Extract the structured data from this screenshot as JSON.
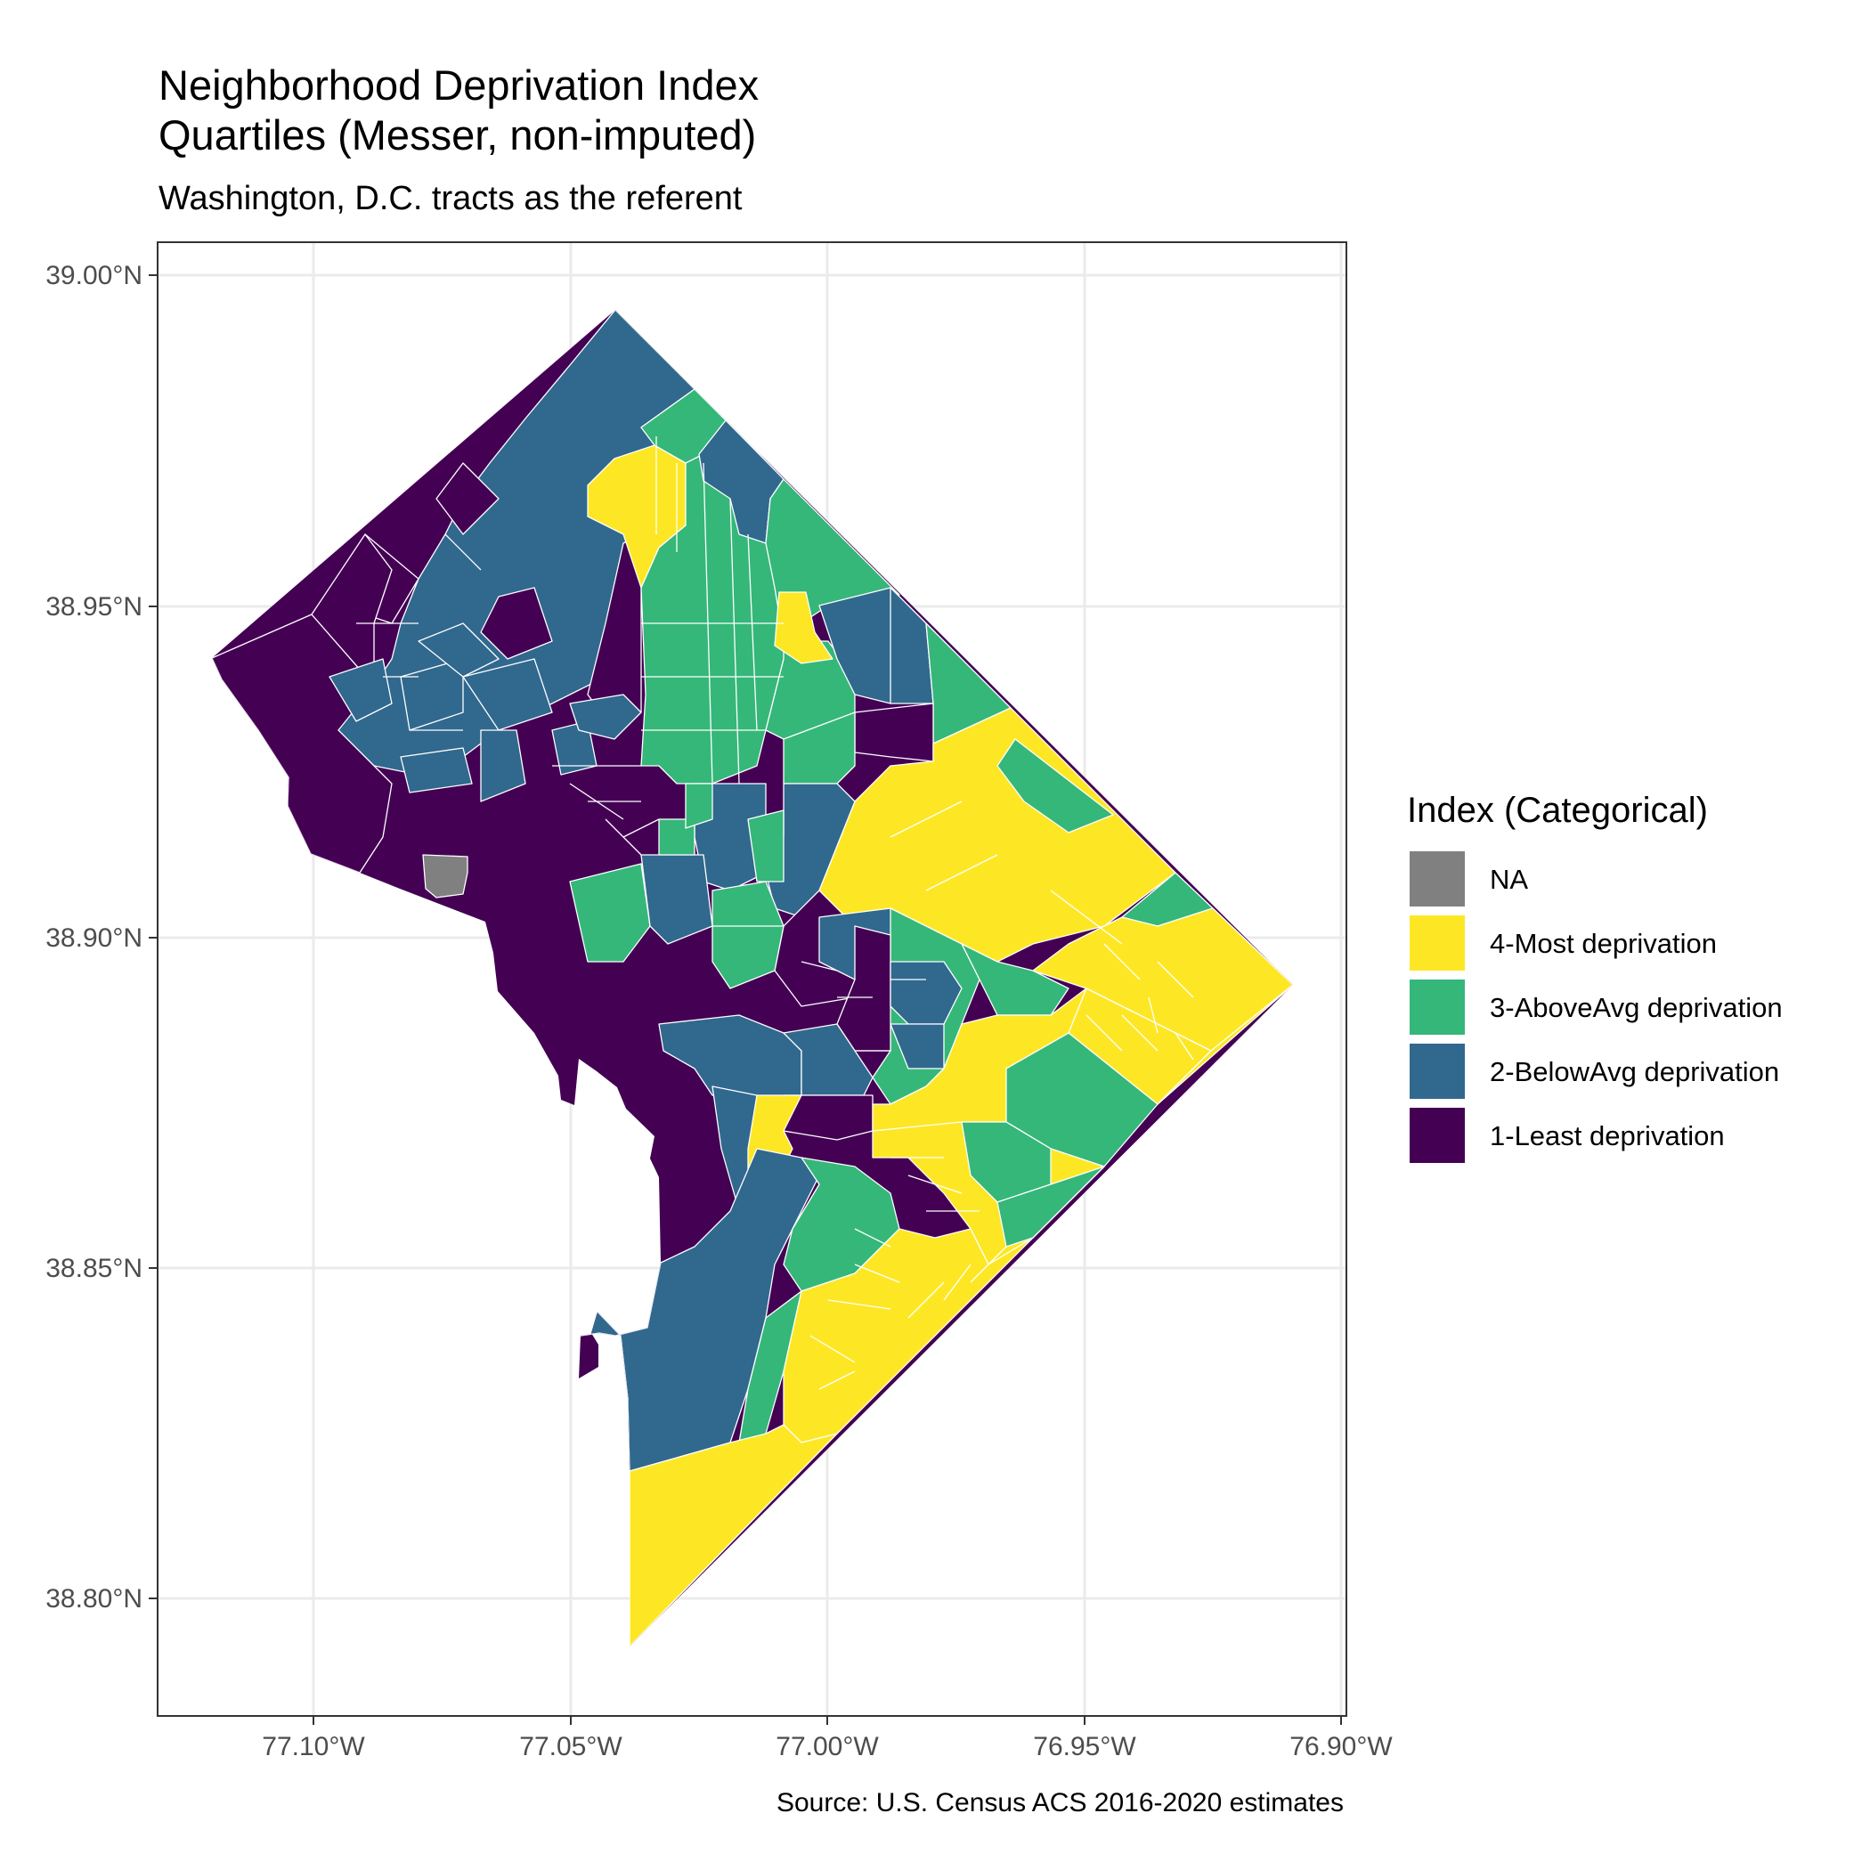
{
  "title_line1": "Neighborhood Deprivation Index",
  "title_line2": "Quartiles (Messer, non-imputed)",
  "subtitle": "Washington, D.C. tracts as the referent",
  "caption": "Source: U.S. Census ACS 2016-2020 estimates",
  "y_ticks": [
    {
      "value": 39.0,
      "label": "39.00°N"
    },
    {
      "value": 38.95,
      "label": "38.95°N"
    },
    {
      "value": 38.9,
      "label": "38.90°N"
    },
    {
      "value": 38.85,
      "label": "38.85°N"
    },
    {
      "value": 38.8,
      "label": "38.80°N"
    }
  ],
  "x_ticks": [
    {
      "value": -77.1,
      "label": "77.10°W"
    },
    {
      "value": -77.05,
      "label": "77.05°W"
    },
    {
      "value": -77.0,
      "label": "77.00°W"
    },
    {
      "value": -76.95,
      "label": "76.95°W"
    },
    {
      "value": -76.9,
      "label": "76.90°W"
    }
  ],
  "legend": {
    "title": "Index (Categorical)",
    "items": [
      {
        "label": "NA",
        "color": "#808080"
      },
      {
        "label": "4-Most deprivation",
        "color": "#FDE725"
      },
      {
        "label": "3-AboveAvg deprivation",
        "color": "#35B779"
      },
      {
        "label": "2-BelowAvg deprivation",
        "color": "#31688E"
      },
      {
        "label": "1-Least deprivation",
        "color": "#440154"
      }
    ]
  }
}
